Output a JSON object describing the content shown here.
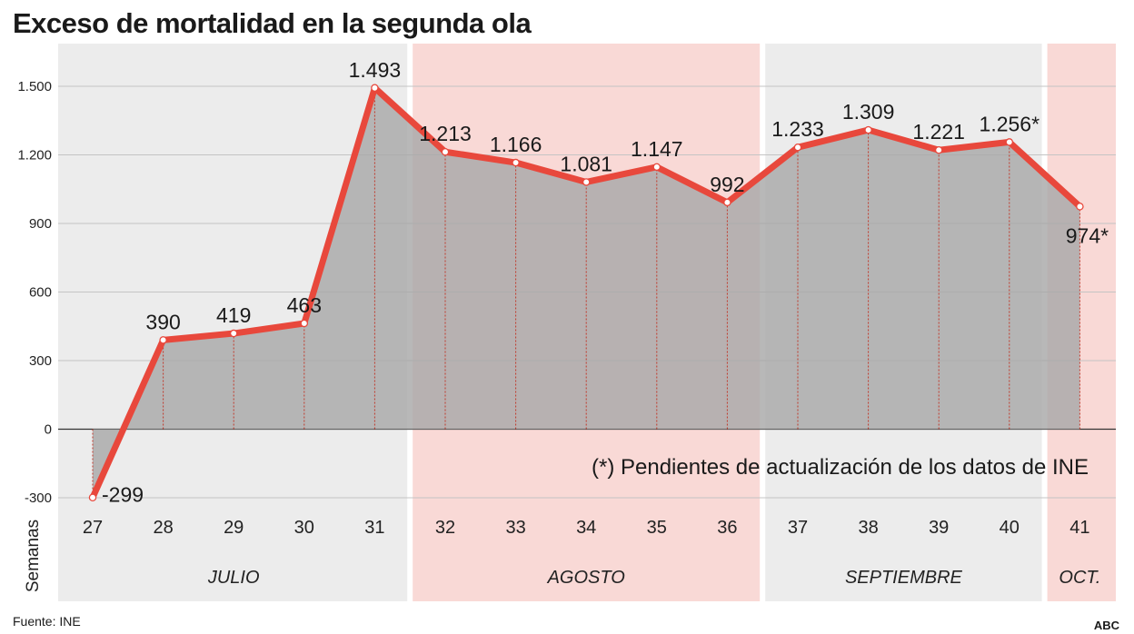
{
  "header": {
    "title": "Exceso de mortalidad en la segunda ola"
  },
  "footer": {
    "source": "Fuente: INE",
    "brand": "ABC"
  },
  "colors": {
    "line": "#e8483c",
    "area": "#a8a8a8",
    "band_gray": "#ececec",
    "band_pink": "#f9d9d6"
  },
  "chart_data": {
    "type": "area",
    "title": "Exceso de mortalidad en la segunda ola",
    "xlabel": "Semanas",
    "ylabel": "",
    "ylim": [
      -300,
      1500
    ],
    "yticks": [
      {
        "value": -300,
        "label": "-300"
      },
      {
        "value": 0,
        "label": "0"
      },
      {
        "value": 300,
        "label": "300"
      },
      {
        "value": 600,
        "label": "600"
      },
      {
        "value": 900,
        "label": "900"
      },
      {
        "value": 1200,
        "label": "1.200"
      },
      {
        "value": 1500,
        "label": "1.500"
      }
    ],
    "x": [
      27,
      28,
      29,
      30,
      31,
      32,
      33,
      34,
      35,
      36,
      37,
      38,
      39,
      40,
      41
    ],
    "values": [
      -299,
      390,
      419,
      463,
      1493,
      1213,
      1166,
      1081,
      1147,
      992,
      1233,
      1309,
      1221,
      1256,
      974
    ],
    "labels": [
      "-299",
      "390",
      "419",
      "463",
      "1.493",
      "1.213",
      "1.166",
      "1.081",
      "1.147",
      "992",
      "1.233",
      "1.309",
      "1.221",
      "1.256*",
      "974*"
    ],
    "months": [
      {
        "name": "JULIO",
        "from": 27,
        "to": 31,
        "shade": "gray"
      },
      {
        "name": "AGOSTO",
        "from": 32,
        "to": 36,
        "shade": "pink"
      },
      {
        "name": "SEPTIEMBRE",
        "from": 37,
        "to": 40,
        "shade": "gray"
      },
      {
        "name": "OCT.",
        "from": 41,
        "to": 41,
        "shade": "pink"
      }
    ],
    "annotation": "(*) Pendientes de actualización de los datos de INE",
    "grid": true
  }
}
